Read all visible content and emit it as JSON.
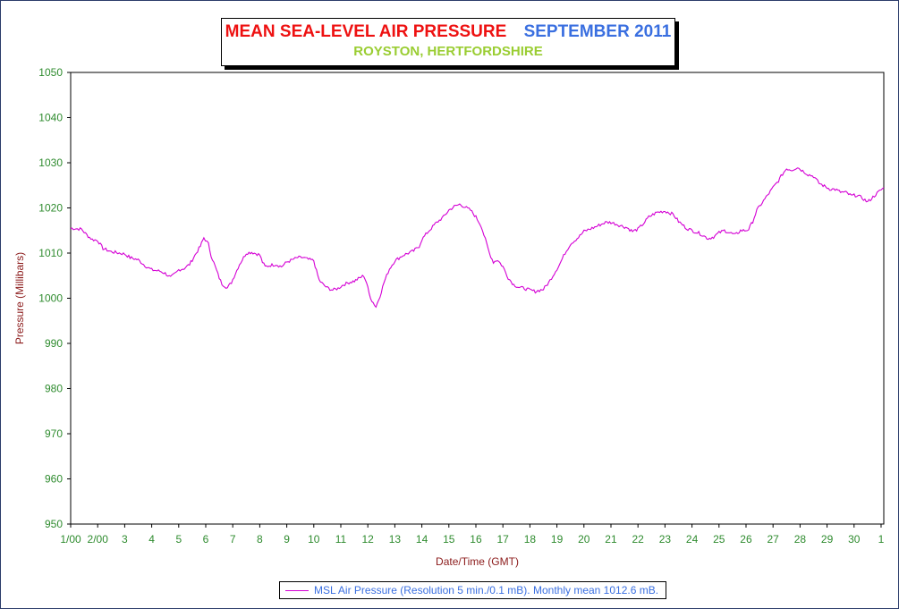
{
  "chart_data": {
    "type": "line",
    "title_left": "MEAN SEA-LEVEL AIR PRESSURE",
    "title_right": "SEPTEMBER 2011",
    "subtitle": "ROYSTON, HERTFORDSHIRE",
    "xlabel": "Date/Time (GMT)",
    "ylabel": "Pressure (Millibars)",
    "ylim": [
      950,
      1050
    ],
    "xlim": [
      1,
      31.1
    ],
    "yticks": [
      950,
      960,
      970,
      980,
      990,
      1000,
      1010,
      1020,
      1030,
      1040,
      1050
    ],
    "xticks": [
      {
        "x": 1,
        "label": "1/00"
      },
      {
        "x": 2,
        "label": "2/00"
      },
      {
        "x": 3,
        "label": "3"
      },
      {
        "x": 4,
        "label": "4"
      },
      {
        "x": 5,
        "label": "5"
      },
      {
        "x": 6,
        "label": "6"
      },
      {
        "x": 7,
        "label": "7"
      },
      {
        "x": 8,
        "label": "8"
      },
      {
        "x": 9,
        "label": "9"
      },
      {
        "x": 10,
        "label": "10"
      },
      {
        "x": 11,
        "label": "11"
      },
      {
        "x": 12,
        "label": "12"
      },
      {
        "x": 13,
        "label": "13"
      },
      {
        "x": 14,
        "label": "14"
      },
      {
        "x": 15,
        "label": "15"
      },
      {
        "x": 16,
        "label": "16"
      },
      {
        "x": 17,
        "label": "17"
      },
      {
        "x": 18,
        "label": "18"
      },
      {
        "x": 19,
        "label": "19"
      },
      {
        "x": 20,
        "label": "20"
      },
      {
        "x": 21,
        "label": "21"
      },
      {
        "x": 22,
        "label": "22"
      },
      {
        "x": 23,
        "label": "23"
      },
      {
        "x": 24,
        "label": "24"
      },
      {
        "x": 25,
        "label": "25"
      },
      {
        "x": 26,
        "label": "26"
      },
      {
        "x": 27,
        "label": "27"
      },
      {
        "x": 28,
        "label": "28"
      },
      {
        "x": 29,
        "label": "29"
      },
      {
        "x": 30,
        "label": "30"
      },
      {
        "x": 31,
        "label": "1"
      }
    ],
    "grid": true,
    "legend_position": "bottom-center",
    "series": [
      {
        "name": "MSL Air Pressure (Resolution 5 min./0.1 mB). Monthly mean 1012.6 mB.",
        "color": "#d400d4",
        "points": [
          [
            1.0,
            1015.5
          ],
          [
            1.4,
            1015.3
          ],
          [
            1.6,
            1014
          ],
          [
            1.8,
            1013
          ],
          [
            2.0,
            1012.8
          ],
          [
            2.2,
            1011
          ],
          [
            2.5,
            1010.3
          ],
          [
            2.8,
            1010
          ],
          [
            3.0,
            1009.8
          ],
          [
            3.2,
            1009
          ],
          [
            3.5,
            1008.5
          ],
          [
            3.8,
            1007
          ],
          [
            4.0,
            1006.3
          ],
          [
            4.3,
            1006
          ],
          [
            4.5,
            1005.5
          ],
          [
            4.7,
            1004.6
          ],
          [
            4.9,
            1005.6
          ],
          [
            5.0,
            1006.3
          ],
          [
            5.2,
            1006.6
          ],
          [
            5.4,
            1007.5
          ],
          [
            5.6,
            1009.5
          ],
          [
            5.8,
            1011.5
          ],
          [
            5.93,
            1013.4
          ],
          [
            6.1,
            1012
          ],
          [
            6.2,
            1009.5
          ],
          [
            6.35,
            1007
          ],
          [
            6.5,
            1004.5
          ],
          [
            6.6,
            1003.2
          ],
          [
            6.8,
            1002.3
          ],
          [
            6.95,
            1003.5
          ],
          [
            7.1,
            1005.5
          ],
          [
            7.25,
            1007.5
          ],
          [
            7.4,
            1009
          ],
          [
            7.5,
            1010
          ],
          [
            7.7,
            1010.2
          ],
          [
            8.0,
            1009.6
          ],
          [
            8.1,
            1008
          ],
          [
            8.2,
            1007
          ],
          [
            8.4,
            1007.3
          ],
          [
            8.6,
            1007.5
          ],
          [
            8.8,
            1007
          ],
          [
            9.0,
            1008
          ],
          [
            9.2,
            1008.5
          ],
          [
            9.4,
            1009
          ],
          [
            9.6,
            1009
          ],
          [
            9.8,
            1008.6
          ],
          [
            10.0,
            1008.3
          ],
          [
            10.1,
            1006
          ],
          [
            10.2,
            1004
          ],
          [
            10.35,
            1003
          ],
          [
            10.5,
            1002.3
          ],
          [
            10.7,
            1001.8
          ],
          [
            10.9,
            1002.2
          ],
          [
            11.1,
            1003
          ],
          [
            11.3,
            1003.5
          ],
          [
            11.5,
            1003.8
          ],
          [
            11.7,
            1004.5
          ],
          [
            11.85,
            1005
          ],
          [
            11.95,
            1003.5
          ],
          [
            12.05,
            1001
          ],
          [
            12.15,
            999.5
          ],
          [
            12.3,
            998.1
          ],
          [
            12.45,
            1000.5
          ],
          [
            12.6,
            1003.5
          ],
          [
            12.8,
            1006.5
          ],
          [
            13.0,
            1008.3
          ],
          [
            13.3,
            1009.5
          ],
          [
            13.5,
            1010
          ],
          [
            13.7,
            1010.5
          ],
          [
            13.9,
            1011.5
          ],
          [
            14.0,
            1013
          ],
          [
            14.2,
            1014.5
          ],
          [
            14.5,
            1016.5
          ],
          [
            14.8,
            1018
          ],
          [
            15.0,
            1019.5
          ],
          [
            15.2,
            1020.3
          ],
          [
            15.4,
            1020.8
          ],
          [
            15.6,
            1020.2
          ],
          [
            15.8,
            1019.5
          ],
          [
            16.0,
            1018
          ],
          [
            16.2,
            1016
          ],
          [
            16.35,
            1013
          ],
          [
            16.5,
            1010
          ],
          [
            16.65,
            1008
          ],
          [
            16.8,
            1008.5
          ],
          [
            17.0,
            1007
          ],
          [
            17.2,
            1004.5
          ],
          [
            17.4,
            1003
          ],
          [
            17.6,
            1002.4
          ],
          [
            17.8,
            1002.2
          ],
          [
            18.0,
            1001.8
          ],
          [
            18.2,
            1001.5
          ],
          [
            18.5,
            1002
          ],
          [
            18.7,
            1003.5
          ],
          [
            18.9,
            1005.5
          ],
          [
            19.1,
            1007.5
          ],
          [
            19.3,
            1010
          ],
          [
            19.5,
            1012
          ],
          [
            19.8,
            1013.5
          ],
          [
            20.0,
            1014.8
          ],
          [
            20.3,
            1015.5
          ],
          [
            20.5,
            1016
          ],
          [
            20.8,
            1016.8
          ],
          [
            21.0,
            1016.8
          ],
          [
            21.3,
            1016.2
          ],
          [
            21.6,
            1015.6
          ],
          [
            21.8,
            1014.8
          ],
          [
            22.0,
            1015.3
          ],
          [
            22.2,
            1016.5
          ],
          [
            22.4,
            1018
          ],
          [
            22.7,
            1019
          ],
          [
            23.0,
            1019.3
          ],
          [
            23.3,
            1018.6
          ],
          [
            23.5,
            1017
          ],
          [
            23.8,
            1015.5
          ],
          [
            24.0,
            1015
          ],
          [
            24.3,
            1014.3
          ],
          [
            24.6,
            1013.2
          ],
          [
            24.8,
            1013.6
          ],
          [
            25.0,
            1014.5
          ],
          [
            25.2,
            1015
          ],
          [
            25.4,
            1014.5
          ],
          [
            25.6,
            1014
          ],
          [
            25.8,
            1015
          ],
          [
            26.0,
            1015
          ],
          [
            26.1,
            1015.3
          ],
          [
            26.25,
            1017
          ],
          [
            26.4,
            1019.5
          ],
          [
            26.7,
            1022
          ],
          [
            27.0,
            1024.5
          ],
          [
            27.2,
            1026
          ],
          [
            27.35,
            1027.5
          ],
          [
            27.5,
            1028.7
          ],
          [
            27.7,
            1028.4
          ],
          [
            27.9,
            1029
          ],
          [
            28.1,
            1028.2
          ],
          [
            28.3,
            1027.4
          ],
          [
            28.5,
            1027
          ],
          [
            28.7,
            1025.5
          ],
          [
            28.9,
            1024.8
          ],
          [
            29.1,
            1024.2
          ],
          [
            29.3,
            1024.1
          ],
          [
            29.5,
            1023.5
          ],
          [
            29.7,
            1023.4
          ],
          [
            29.9,
            1022.7
          ],
          [
            30.1,
            1022.8
          ],
          [
            30.3,
            1022.2
          ],
          [
            30.5,
            1021.3
          ],
          [
            30.7,
            1022.4
          ],
          [
            30.9,
            1023.5
          ],
          [
            31.1,
            1024.5
          ]
        ]
      }
    ]
  }
}
